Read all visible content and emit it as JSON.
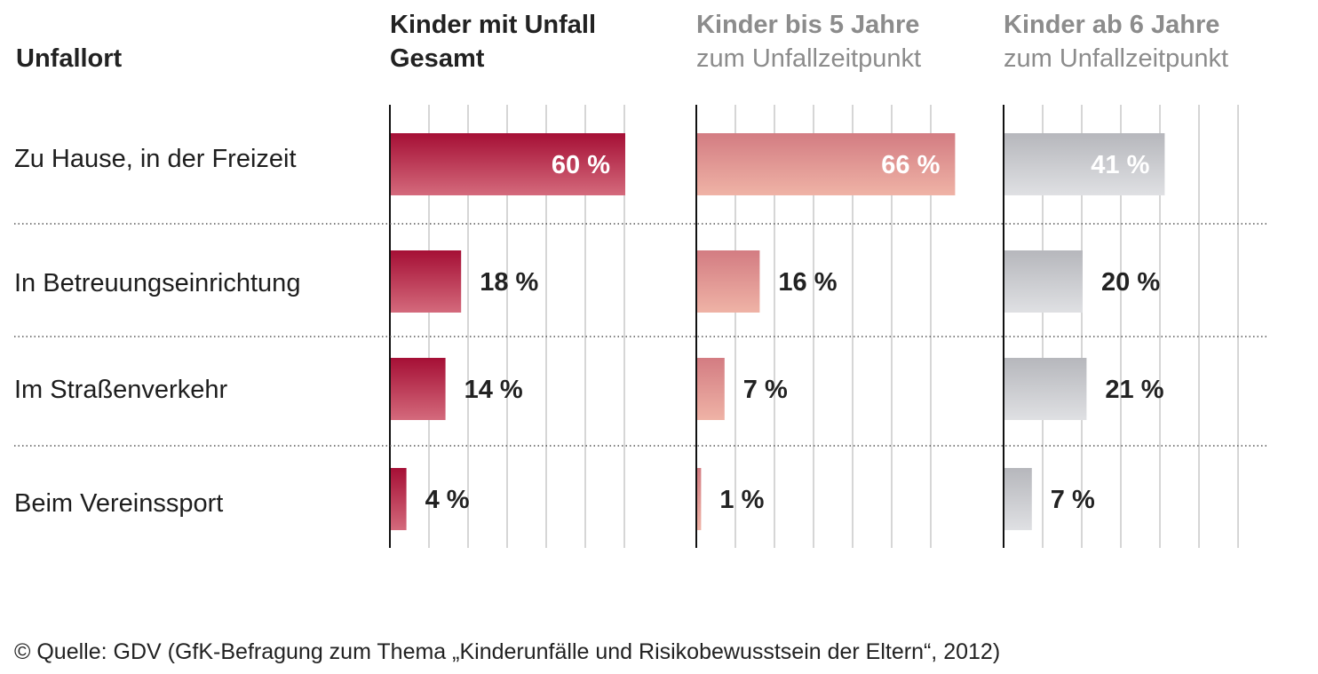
{
  "chart_data": {
    "type": "bar",
    "row_header": "Unfallort",
    "categories": [
      "Zu Hause, in der Freizeit",
      "In Betreuungseinrichtung",
      "Im Straßenverkehr",
      "Beim Vereinssport"
    ],
    "series": [
      {
        "name": "Kinder mit Unfall Gesamt",
        "header_line1": "Kinder mit Unfall",
        "header_line2": "Gesamt",
        "values": [
          60,
          18,
          14,
          4
        ],
        "labels": [
          "60 %",
          "18 %",
          "14 %",
          "4 %"
        ],
        "color_top": "#a50f35",
        "color_bottom": "#d46a7c",
        "header_color": "#222222"
      },
      {
        "name": "Kinder bis 5 Jahre zum Unfallzeitpunkt",
        "header_line1": "Kinder bis 5 Jahre",
        "header_line2": "zum Unfallzeitpunkt",
        "values": [
          66,
          16,
          7,
          1
        ],
        "labels": [
          "66 %",
          "16 %",
          "7 %",
          "1 %"
        ],
        "color_top": "#d37c82",
        "color_bottom": "#efb3a6",
        "header_color": "#8c8c8c"
      },
      {
        "name": "Kinder ab 6 Jahre zum Unfallzeitpunkt",
        "header_line1": "Kinder ab 6 Jahre",
        "header_line2": "zum Unfallzeitpunkt",
        "values": [
          41,
          20,
          21,
          7
        ],
        "labels": [
          "41 %",
          "20 %",
          "21 %",
          "7 %"
        ],
        "color_top": "#b6b7bc",
        "color_bottom": "#dfe0e3",
        "header_color": "#8c8c8c"
      }
    ],
    "xlim": [
      0,
      70
    ],
    "grid": true
  },
  "source": "© Quelle: GDV (GfK-Befragung zum Thema „Kinderunfälle und Risikobewusstsein der Eltern“, 2012)"
}
